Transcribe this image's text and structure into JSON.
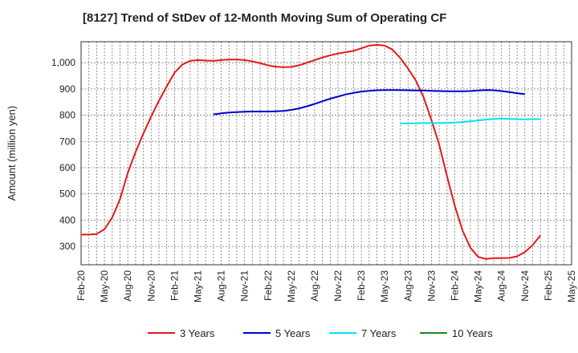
{
  "chart_data": {
    "type": "line",
    "title": "[8127]  Trend of StDev of 12-Month Moving Sum of Operating CF",
    "xlabel": "",
    "ylabel": "Amount (million yen)",
    "ylim": [
      230,
      1080
    ],
    "y_ticks": [
      300,
      400,
      500,
      600,
      700,
      800,
      900,
      1000
    ],
    "y_tick_labels": [
      "300",
      "400",
      "500",
      "600",
      "700",
      "800",
      "900",
      "1,000"
    ],
    "x_tick_labels": [
      "Feb-20",
      "May-20",
      "Aug-20",
      "Nov-20",
      "Feb-21",
      "May-21",
      "Aug-21",
      "Nov-21",
      "Feb-22",
      "May-22",
      "Aug-22",
      "Nov-22",
      "Feb-23",
      "May-23",
      "Aug-23",
      "Nov-23",
      "Feb-24",
      "May-24",
      "Aug-24",
      "Nov-24",
      "Feb-25",
      "May-25"
    ],
    "grid": true,
    "legend_position": "bottom",
    "series": [
      {
        "name": "3 Years",
        "color": "#e31a1c",
        "start_month": "Feb-20",
        "values": [
          345,
          345,
          347,
          365,
          410,
          480,
          580,
          660,
          730,
          795,
          855,
          910,
          962,
          993,
          1007,
          1010,
          1008,
          1007,
          1010,
          1012,
          1012,
          1010,
          1005,
          998,
          990,
          985,
          983,
          984,
          990,
          1000,
          1010,
          1020,
          1028,
          1035,
          1040,
          1045,
          1055,
          1065,
          1068,
          1065,
          1050,
          1018,
          978,
          932,
          868,
          782,
          688,
          568,
          455,
          360,
          295,
          260,
          252,
          255,
          255,
          256,
          262,
          278,
          305,
          342
        ]
      },
      {
        "name": "5 Years",
        "color": "#0000cc",
        "start_month": "Jul-21",
        "values": [
          803,
          807,
          810,
          812,
          813,
          814,
          814,
          814,
          815,
          816,
          820,
          826,
          834,
          843,
          853,
          863,
          871,
          879,
          885,
          890,
          893,
          895,
          896,
          896,
          896,
          895,
          894,
          894,
          893,
          892,
          891,
          891,
          891,
          892,
          894,
          896,
          895,
          892,
          888,
          884,
          880
        ]
      },
      {
        "name": "7 Years",
        "color": "#00e5ee",
        "start_month": "Jul-23",
        "values": [
          768,
          769,
          769,
          770,
          770,
          770,
          771,
          772,
          774,
          777,
          780,
          783,
          786,
          787,
          786,
          785,
          784,
          785,
          785
        ]
      },
      {
        "name": "10 Years",
        "color": "#1a8a1a",
        "start_month": "",
        "values": []
      }
    ]
  }
}
